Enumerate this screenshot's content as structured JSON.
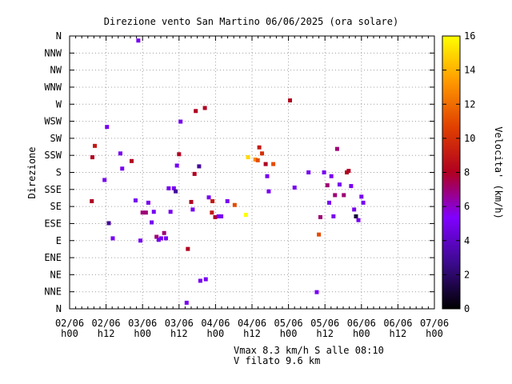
{
  "chart_data": {
    "type": "scatter",
    "title": "Direzione vento San Martino 06/06/2025 (ora solare)",
    "ylabel": "Direzione",
    "y_categories": [
      "N",
      "NNE",
      "NE",
      "ENE",
      "E",
      "ESE",
      "SE",
      "SSE",
      "S",
      "SSW",
      "SW",
      "WSW",
      "W",
      "WNW",
      "NW",
      "NNW",
      "N"
    ],
    "x_ticks": [
      [
        "02/06",
        "h00"
      ],
      [
        "02/06",
        "h12"
      ],
      [
        "03/06",
        "h00"
      ],
      [
        "03/06",
        "h12"
      ],
      [
        "04/06",
        "h00"
      ],
      [
        "04/06",
        "h12"
      ],
      [
        "05/06",
        "h00"
      ],
      [
        "05/06",
        "h12"
      ],
      [
        "06/06",
        "h00"
      ],
      [
        "06/06",
        "h12"
      ],
      [
        "07/06",
        "h00"
      ]
    ],
    "x_range_hours": [
      0,
      120
    ],
    "y_range_degrees": [
      0,
      360
    ],
    "grid": true,
    "colorbar": {
      "label": "Velocita' (km/h)",
      "ticks": [
        0,
        2,
        4,
        6,
        8,
        10,
        12,
        14,
        16
      ],
      "range": [
        0,
        16
      ],
      "colors": [
        "#000000",
        "#3b0a8c",
        "#8000ff",
        "#b00020",
        "#e04000",
        "#ff9900",
        "#ffff00"
      ]
    },
    "points": [
      {
        "h": 7.3,
        "deg": 142,
        "v": 8
      },
      {
        "h": 7.5,
        "deg": 200,
        "v": 8
      },
      {
        "h": 8.3,
        "deg": 215,
        "v": 9
      },
      {
        "h": 11.5,
        "deg": 170,
        "v": 5
      },
      {
        "h": 12.3,
        "deg": 240,
        "v": 5
      },
      {
        "h": 12.9,
        "deg": 113,
        "v": 3
      },
      {
        "h": 14.2,
        "deg": 93,
        "v": 5
      },
      {
        "h": 16.7,
        "deg": 205,
        "v": 5
      },
      {
        "h": 17.3,
        "deg": 185,
        "v": 5
      },
      {
        "h": 20.4,
        "deg": 195,
        "v": 8
      },
      {
        "h": 21.7,
        "deg": 143,
        "v": 5
      },
      {
        "h": 22.6,
        "deg": 354,
        "v": 5
      },
      {
        "h": 23.3,
        "deg": 90,
        "v": 5
      },
      {
        "h": 24.0,
        "deg": 127,
        "v": 7
      },
      {
        "h": 25.1,
        "deg": 127,
        "v": 7
      },
      {
        "h": 25.9,
        "deg": 140,
        "v": 5
      },
      {
        "h": 27.0,
        "deg": 114,
        "v": 5
      },
      {
        "h": 27.7,
        "deg": 128,
        "v": 5
      },
      {
        "h": 28.6,
        "deg": 95,
        "v": 7
      },
      {
        "h": 29.3,
        "deg": 91,
        "v": 5
      },
      {
        "h": 30.1,
        "deg": 93,
        "v": 5
      },
      {
        "h": 31.1,
        "deg": 100,
        "v": 7
      },
      {
        "h": 31.7,
        "deg": 93,
        "v": 5
      },
      {
        "h": 32.6,
        "deg": 159,
        "v": 5
      },
      {
        "h": 33.2,
        "deg": 128,
        "v": 5
      },
      {
        "h": 34.3,
        "deg": 159,
        "v": 5
      },
      {
        "h": 34.9,
        "deg": 155,
        "v": 3
      },
      {
        "h": 35.3,
        "deg": 189,
        "v": 5
      },
      {
        "h": 36.0,
        "deg": 204,
        "v": 8
      },
      {
        "h": 36.5,
        "deg": 247,
        "v": 5
      },
      {
        "h": 38.5,
        "deg": 8,
        "v": 5
      },
      {
        "h": 38.9,
        "deg": 79,
        "v": 8
      },
      {
        "h": 40.0,
        "deg": 141,
        "v": 8
      },
      {
        "h": 40.5,
        "deg": 131,
        "v": 5
      },
      {
        "h": 41.1,
        "deg": 178,
        "v": 8
      },
      {
        "h": 41.5,
        "deg": 261,
        "v": 8
      },
      {
        "h": 42.6,
        "deg": 188,
        "v": 3
      },
      {
        "h": 43.0,
        "deg": 37,
        "v": 5
      },
      {
        "h": 44.5,
        "deg": 265,
        "v": 8
      },
      {
        "h": 44.8,
        "deg": 39,
        "v": 5
      },
      {
        "h": 45.8,
        "deg": 147,
        "v": 5
      },
      {
        "h": 46.8,
        "deg": 127,
        "v": 9
      },
      {
        "h": 47.0,
        "deg": 142,
        "v": 9
      },
      {
        "h": 47.9,
        "deg": 121,
        "v": 8
      },
      {
        "h": 49.0,
        "deg": 122,
        "v": 5
      },
      {
        "h": 49.9,
        "deg": 122,
        "v": 5
      },
      {
        "h": 51.9,
        "deg": 142,
        "v": 5
      },
      {
        "h": 54.3,
        "deg": 137,
        "v": 11
      },
      {
        "h": 58.0,
        "deg": 124,
        "v": 16
      },
      {
        "h": 58.7,
        "deg": 200,
        "v": 15
      },
      {
        "h": 61.1,
        "deg": 197,
        "v": 13
      },
      {
        "h": 61.9,
        "deg": 196,
        "v": 11
      },
      {
        "h": 62.4,
        "deg": 213,
        "v": 9
      },
      {
        "h": 63.3,
        "deg": 205,
        "v": 10
      },
      {
        "h": 64.5,
        "deg": 191,
        "v": 8
      },
      {
        "h": 65.0,
        "deg": 175,
        "v": 5
      },
      {
        "h": 65.5,
        "deg": 155,
        "v": 5
      },
      {
        "h": 67.0,
        "deg": 191,
        "v": 11
      },
      {
        "h": 72.5,
        "deg": 275,
        "v": 8
      },
      {
        "h": 74.0,
        "deg": 160,
        "v": 5
      },
      {
        "h": 78.6,
        "deg": 180,
        "v": 5
      },
      {
        "h": 81.3,
        "deg": 22,
        "v": 5
      },
      {
        "h": 82.0,
        "deg": 98,
        "v": 11
      },
      {
        "h": 82.5,
        "deg": 121,
        "v": 7
      },
      {
        "h": 83.7,
        "deg": 180,
        "v": 5
      },
      {
        "h": 84.8,
        "deg": 163,
        "v": 7
      },
      {
        "h": 85.4,
        "deg": 140,
        "v": 5
      },
      {
        "h": 86.1,
        "deg": 175,
        "v": 5
      },
      {
        "h": 86.8,
        "deg": 122,
        "v": 5
      },
      {
        "h": 87.3,
        "deg": 150,
        "v": 7
      },
      {
        "h": 88.0,
        "deg": 211,
        "v": 7
      },
      {
        "h": 88.8,
        "deg": 164,
        "v": 5
      },
      {
        "h": 90.2,
        "deg": 150,
        "v": 7
      },
      {
        "h": 91.2,
        "deg": 180,
        "v": 8
      },
      {
        "h": 91.8,
        "deg": 182,
        "v": 8
      },
      {
        "h": 92.6,
        "deg": 162,
        "v": 5
      },
      {
        "h": 93.6,
        "deg": 131,
        "v": 5
      },
      {
        "h": 94.2,
        "deg": 122,
        "v": 1
      },
      {
        "h": 95.0,
        "deg": 117,
        "v": 5
      },
      {
        "h": 96.0,
        "deg": 148,
        "v": 5
      },
      {
        "h": 96.6,
        "deg": 140,
        "v": 5
      }
    ]
  },
  "footer": {
    "line1": "Vmax 8.3 km/h S alle 08:10",
    "line2": "V filato 9.6 km"
  }
}
